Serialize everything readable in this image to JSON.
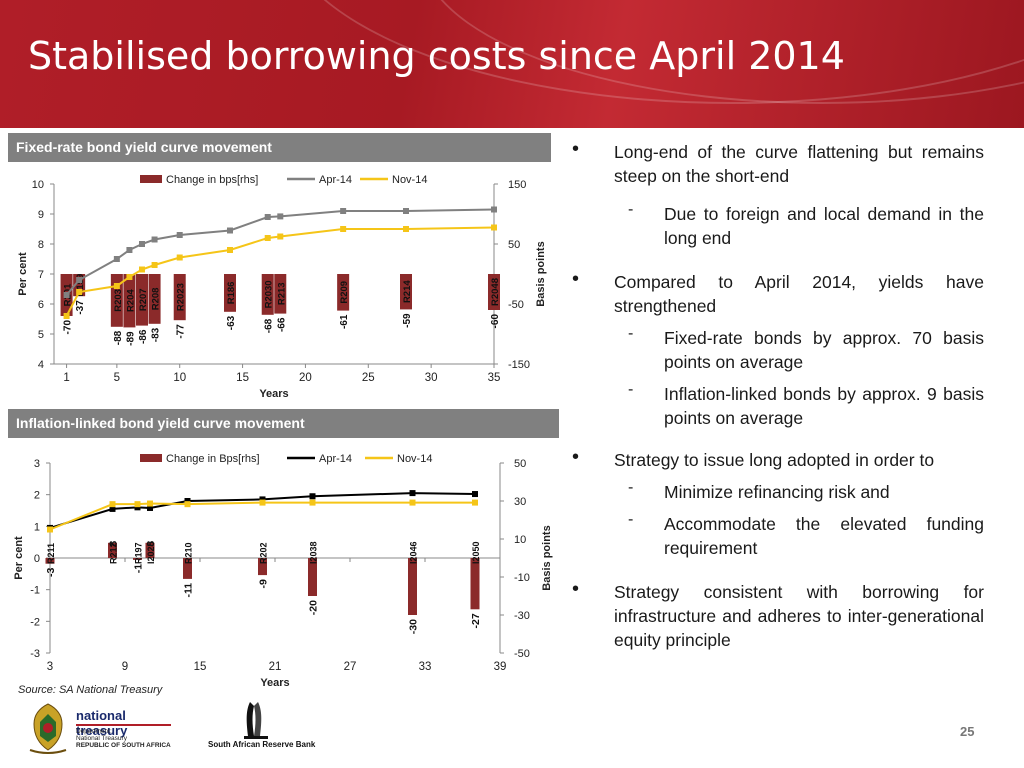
{
  "title": "Stabilised borrowing costs since April 2014",
  "page_number": "25",
  "source": "Source: SA National Treasury",
  "colors": {
    "banner": "#b01e28",
    "bar": "#8b2a2a",
    "apr_line1": "#808080",
    "apr_line2": "#000000",
    "nov_line": "#f5c518"
  },
  "sections": {
    "fixed_header": "Fixed-rate bond yield curve movement",
    "inflation_header": "Inflation-linked bond yield curve movement"
  },
  "bullets": [
    {
      "text": "Long-end of the curve flattening but remains steep on the short-end",
      "sub": [
        "Due to  foreign and local demand in the long end"
      ]
    },
    {
      "text": "Compared to April 2014, yields have strengthened",
      "sub": [
        "Fixed-rate bonds by approx. 70 basis points on average",
        "Inflation-linked bonds by approx. 9 basis points on average"
      ]
    },
    {
      "text": "Strategy to issue long adopted in order to",
      "sub": [
        "Minimize refinancing risk and",
        "Accommodate the elevated funding requirement"
      ]
    },
    {
      "text": "Strategy consistent with borrowing for infrastructure and adheres to inter-generational equity principle",
      "sub": []
    }
  ],
  "logos": {
    "nt_name": "national treasury",
    "nt_line1": "Department:",
    "nt_line2": "National Treasury",
    "nt_line3": "REPUBLIC OF SOUTH AFRICA",
    "sarb_name": "South African Reserve Bank",
    "sarb_icon": "reserve-bank-emblem-icon",
    "nt_icon": "coat-of-arms-icon"
  },
  "chart_data": [
    {
      "type": "bar",
      "name": "fixed",
      "xlabel": "Years",
      "ylabel": "Per cent",
      "y2label": "Basis points",
      "xlim": [
        0,
        35
      ],
      "xticks": [
        "1",
        "5",
        "10",
        "15",
        "20",
        "25",
        "30",
        "35"
      ],
      "ylim": [
        4,
        10
      ],
      "yticks": [
        "4",
        "5",
        "6",
        "7",
        "8",
        "9",
        "10"
      ],
      "y2lim": [
        -150,
        150
      ],
      "y2ticks": [
        "-150",
        "-50",
        "50",
        "150"
      ],
      "legend": [
        "Change in bps[rhs]",
        "Apr-14",
        "Nov-14"
      ],
      "legend_position": "top",
      "bars": [
        {
          "x": 1,
          "value": -70,
          "bond": "R201",
          "label": "-70"
        },
        {
          "x": 2,
          "value": -37,
          "bond": "R159",
          "label": "-37"
        },
        {
          "x": 5,
          "value": -88,
          "bond": "R203",
          "label": "-88"
        },
        {
          "x": 6,
          "value": -89,
          "bond": "R204",
          "label": "-89"
        },
        {
          "x": 7,
          "value": -86,
          "bond": "R207",
          "label": "-86"
        },
        {
          "x": 8,
          "value": -83,
          "bond": "R208",
          "label": "-83"
        },
        {
          "x": 10,
          "value": -77,
          "bond": "R2023",
          "label": "-77"
        },
        {
          "x": 14,
          "value": -63,
          "bond": "R186",
          "label": "-63"
        },
        {
          "x": 17,
          "value": -68,
          "bond": "R2030",
          "label": "-68"
        },
        {
          "x": 18,
          "value": -66,
          "bond": "R213",
          "label": "-66"
        },
        {
          "x": 23,
          "value": -61,
          "bond": "R209",
          "label": "-61"
        },
        {
          "x": 28,
          "value": -59,
          "bond": "R214",
          "label": "-59"
        },
        {
          "x": 35,
          "value": -60,
          "bond": "R2048",
          "label": "-60"
        }
      ],
      "series": [
        {
          "name": "Apr-14",
          "x": [
            1,
            2,
            5,
            6,
            7,
            8,
            10,
            14,
            17,
            18,
            23,
            28,
            35
          ],
          "y": [
            6.3,
            6.8,
            7.5,
            7.8,
            8.0,
            8.15,
            8.3,
            8.45,
            8.9,
            8.92,
            9.1,
            9.1,
            9.15
          ]
        },
        {
          "name": "Nov-14",
          "x": [
            1,
            2,
            5,
            6,
            7,
            8,
            10,
            14,
            17,
            18,
            23,
            28,
            35
          ],
          "y": [
            5.6,
            6.4,
            6.6,
            6.9,
            7.15,
            7.3,
            7.55,
            7.8,
            8.2,
            8.25,
            8.5,
            8.5,
            8.55
          ]
        }
      ]
    },
    {
      "type": "bar",
      "name": "inflation",
      "xlabel": "Years",
      "ylabel": "Per cent",
      "y2label": "Basis points",
      "xlim": [
        3,
        39
      ],
      "xticks": [
        "3",
        "9",
        "15",
        "21",
        "27",
        "33",
        "39"
      ],
      "ylim": [
        -3,
        3
      ],
      "yticks": [
        "-3",
        "-2",
        "-1",
        "0",
        "1",
        "2",
        "3"
      ],
      "y2lim": [
        -50,
        50
      ],
      "y2ticks": [
        "-50",
        "-30",
        "-10",
        "10",
        "30",
        "50"
      ],
      "legend": [
        "Change in Bps[rhs]",
        "Apr-14",
        "Nov-14"
      ],
      "legend_position": "top",
      "bars": [
        {
          "x": 3,
          "value": -3,
          "bond": "R211",
          "label": "-3"
        },
        {
          "x": 8,
          "value": 8,
          "bond": "R212",
          "label": "8"
        },
        {
          "x": 10,
          "value": -1,
          "bond": "R197",
          "label": "-1"
        },
        {
          "x": 11,
          "value": 8,
          "bond": "I2025",
          "label": "8"
        },
        {
          "x": 14,
          "value": -11,
          "bond": "R210",
          "label": "-11"
        },
        {
          "x": 20,
          "value": -9,
          "bond": "R202",
          "label": "-9"
        },
        {
          "x": 24,
          "value": -20,
          "bond": "I2038",
          "label": "-20"
        },
        {
          "x": 32,
          "value": -30,
          "bond": "I2046",
          "label": "-30"
        },
        {
          "x": 37,
          "value": -27,
          "bond": "I2050",
          "label": "-27"
        }
      ],
      "series": [
        {
          "name": "Apr-14",
          "x": [
            3,
            8,
            10,
            11,
            14,
            20,
            24,
            32,
            37
          ],
          "y": [
            0.95,
            1.55,
            1.6,
            1.58,
            1.8,
            1.85,
            1.95,
            2.05,
            2.02
          ]
        },
        {
          "name": "Nov-14",
          "x": [
            3,
            8,
            10,
            11,
            14,
            20,
            24,
            32,
            37
          ],
          "y": [
            0.9,
            1.7,
            1.7,
            1.72,
            1.7,
            1.75,
            1.75,
            1.75,
            1.75
          ]
        }
      ]
    }
  ]
}
